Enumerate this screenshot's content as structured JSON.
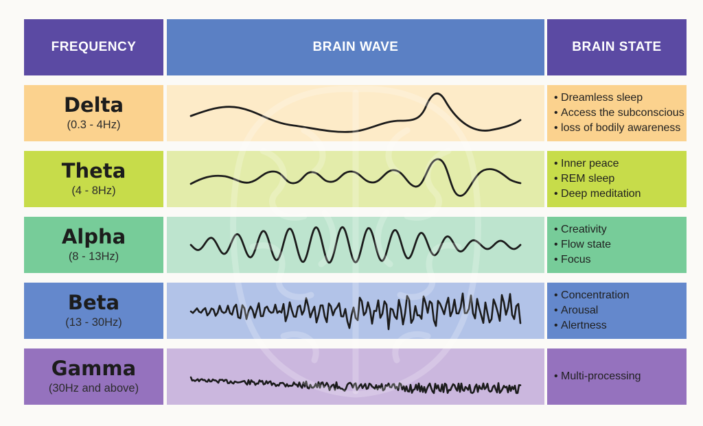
{
  "headers": {
    "frequency": "FREQUENCY",
    "brain_wave": "BRAIN WAVE",
    "brain_state": "BRAIN STATE"
  },
  "colors": {
    "header_frequency": "#5b4aa3",
    "header_wave": "#5b80c4",
    "header_state": "#5b4aa3"
  },
  "rows": [
    {
      "name": "Delta",
      "range": "(0.3 - 4Hz)",
      "states": [
        "Dreamless sleep",
        "Access the subconscious",
        "loss of bodily awareness"
      ],
      "color_label": "#fbd28e",
      "color_wave": "#fdebc8",
      "color_state": "#fbd28e"
    },
    {
      "name": "Theta",
      "range": "(4 - 8Hz)",
      "states": [
        "Inner peace",
        "REM sleep",
        "Deep meditation"
      ],
      "color_label": "#c7dc4a",
      "color_wave": "#e3ecaa",
      "color_state": "#c7dc4a"
    },
    {
      "name": "Alpha",
      "range": "(8 - 13Hz)",
      "states": [
        "Creativity",
        "Flow state",
        "Focus"
      ],
      "color_label": "#77cc99",
      "color_wave": "#bde4ce",
      "color_state": "#77cc99"
    },
    {
      "name": "Beta",
      "range": "(13 - 30Hz)",
      "states": [
        "Concentration",
        "Arousal",
        "Alertness"
      ],
      "color_label": "#6488cc",
      "color_wave": "#b2c3e8",
      "color_state": "#6488cc"
    },
    {
      "name": "Gamma",
      "range": "(30Hz and above)",
      "states": [
        "Multi-processing"
      ],
      "color_label": "#9572be",
      "color_wave": "#cbb7de",
      "color_state": "#9572be"
    }
  ]
}
